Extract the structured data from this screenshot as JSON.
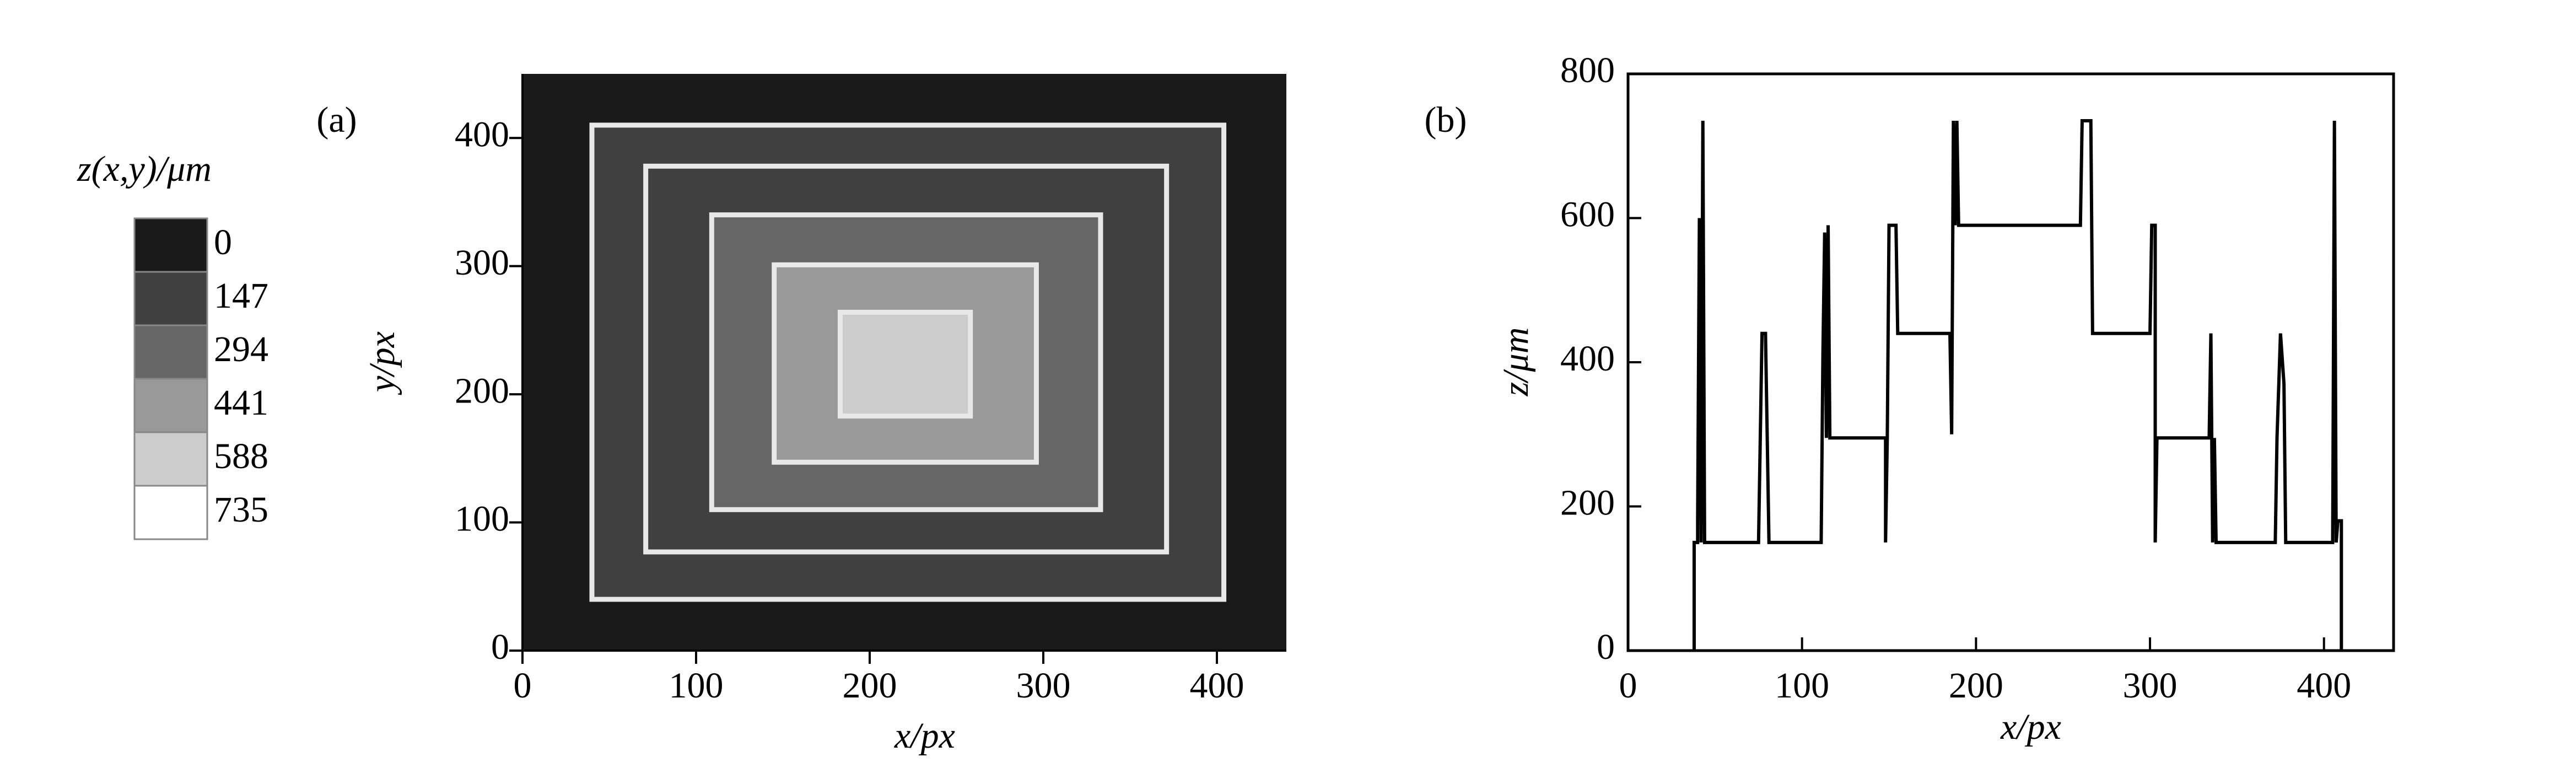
{
  "chart_data": [
    {
      "type": "heatmap",
      "panel_label": "(a)",
      "x_label": "x/px",
      "y_label": "y/px",
      "xlim": [
        0,
        440
      ],
      "ylim": [
        0,
        450
      ],
      "xticks": [
        0,
        100,
        200,
        300,
        400
      ],
      "yticks": [
        0,
        100,
        200,
        300,
        400
      ],
      "background_value": 0,
      "rectangles": [
        {
          "x": [
            40,
            404
          ],
          "y": [
            40,
            410
          ],
          "value": 147
        },
        {
          "x": [
            71,
            371
          ],
          "y": [
            77,
            378
          ],
          "value": 147
        },
        {
          "x": [
            109,
            333
          ],
          "y": [
            110,
            340
          ],
          "value": 294
        },
        {
          "x": [
            145,
            296
          ],
          "y": [
            147,
            301
          ],
          "value": 441
        },
        {
          "x": [
            183,
            258
          ],
          "y": [
            183,
            264
          ],
          "value": 588
        }
      ],
      "colorbar": {
        "title": "z(x,y)/μm",
        "values": [
          0,
          147,
          294,
          441,
          588,
          735
        ],
        "colors": [
          "#1a1a1a",
          "#404040",
          "#666666",
          "#999999",
          "#cccccc",
          "#ffffff"
        ]
      }
    },
    {
      "type": "line",
      "panel_label": "(b)",
      "x_label": "x/px",
      "y_label": "z/μm",
      "xlim": [
        0,
        440
      ],
      "ylim": [
        0,
        800
      ],
      "xticks": [
        0,
        100,
        200,
        300,
        400
      ],
      "yticks": [
        0,
        200,
        400,
        600,
        800
      ],
      "color": "#000000",
      "x": [
        38,
        38,
        40,
        40,
        41,
        42,
        43,
        44,
        75,
        76,
        77,
        79,
        80,
        81,
        111,
        112,
        113,
        114,
        115,
        116,
        148,
        148,
        149,
        150,
        154,
        155,
        185,
        186,
        187,
        188,
        189,
        190,
        260,
        261,
        266,
        267,
        300,
        301,
        303,
        303,
        304,
        334,
        335,
        336,
        337,
        338,
        372,
        373,
        375,
        377,
        378,
        405,
        406,
        407,
        408,
        410,
        410
      ],
      "values": [
        0,
        150,
        150,
        180,
        600,
        150,
        735,
        150,
        150,
        295,
        440,
        440,
        295,
        150,
        150,
        410,
        580,
        295,
        590,
        295,
        295,
        150,
        295,
        590,
        590,
        440,
        440,
        300,
        735,
        590,
        735,
        590,
        590,
        735,
        735,
        440,
        440,
        590,
        590,
        150,
        295,
        295,
        440,
        150,
        295,
        150,
        150,
        295,
        440,
        370,
        150,
        150,
        735,
        150,
        180,
        180,
        0
      ]
    }
  ]
}
